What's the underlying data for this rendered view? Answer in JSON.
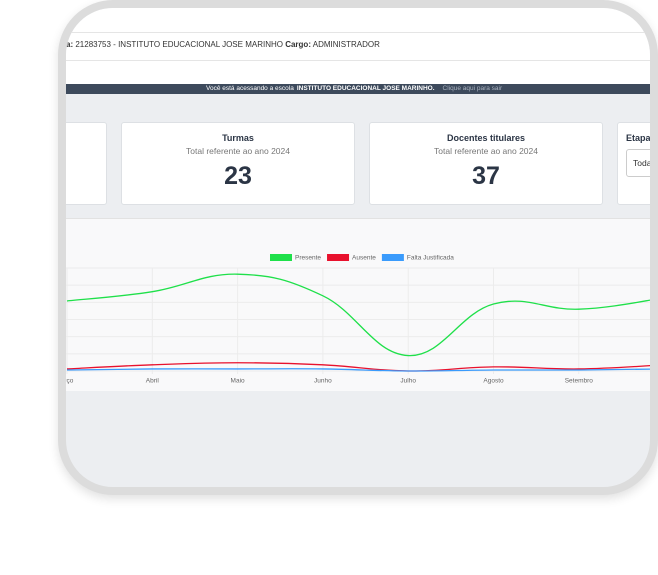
{
  "top_bar": {
    "label_prefix": "a:",
    "school": "21283753 - INSTITUTO EDUCACIONAL JOSE MARINHO",
    "role_label": "Cargo:",
    "role": "ADMINISTRADOR"
  },
  "banner": {
    "text": "Você está acessando a escola",
    "school": "INSTITUTO EDUCACIONAL JOSE MARINHO.",
    "link": "Clique aqui para sair"
  },
  "cards": [
    {
      "title": "Turmas",
      "subtitle": "Total referente ao ano 2024",
      "value": 23
    },
    {
      "title": "Docentes titulares",
      "subtitle": "Total referente ao ano 2024",
      "value": 37
    }
  ],
  "filter": {
    "label": "Etapa",
    "selected": "Toda"
  },
  "chart_data": {
    "type": "line",
    "categories": [
      "arço",
      "Abril",
      "Maio",
      "Junho",
      "Julho",
      "Agosto",
      "Setembro",
      null
    ],
    "series": [
      {
        "name": "Presente",
        "color": "#1fe04a",
        "values": [
          68,
          77,
          94,
          73,
          15,
          65,
          60,
          71
        ]
      },
      {
        "name": "Ausente",
        "color": "#e8112d",
        "values": [
          2,
          6,
          8,
          6,
          0,
          4,
          2,
          6
        ]
      },
      {
        "name": "Falta Justificada",
        "color": "#3a9bfc",
        "values": [
          1,
          2,
          2,
          2,
          0,
          1,
          1,
          2
        ]
      }
    ],
    "ylim": [
      0,
      100
    ],
    "grid": true
  }
}
